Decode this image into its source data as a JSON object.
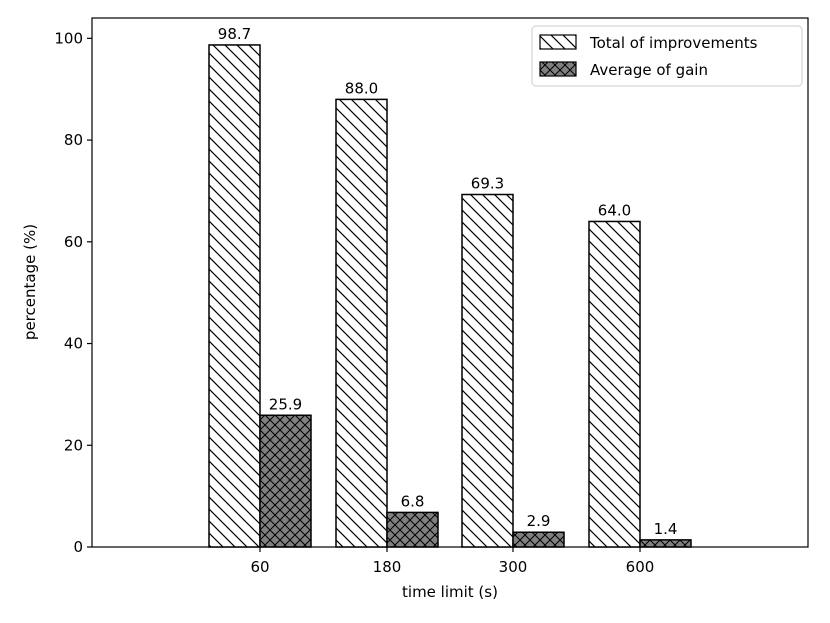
{
  "chart_data": {
    "type": "bar",
    "title": "",
    "xlabel": "time limit (s)",
    "ylabel": "percentage (%)",
    "categories": [
      "60",
      "180",
      "300",
      "600"
    ],
    "ylim": [
      0,
      104
    ],
    "yticks": [
      0,
      20,
      40,
      60,
      80,
      100
    ],
    "grid": false,
    "legend_position": "top-right",
    "series": [
      {
        "name": "Total of improvements",
        "values": [
          98.7,
          88.0,
          69.3,
          64.0
        ],
        "labels": [
          "98.7",
          "88.0",
          "69.3",
          "64.0"
        ],
        "fill": "#ffffff",
        "hatch": "diagonal"
      },
      {
        "name": "Average of gain",
        "values": [
          25.9,
          6.8,
          2.9,
          1.4
        ],
        "labels": [
          "25.9",
          "6.8",
          "2.9",
          "1.4"
        ],
        "fill": "#808080",
        "hatch": "crosshatch"
      }
    ]
  }
}
